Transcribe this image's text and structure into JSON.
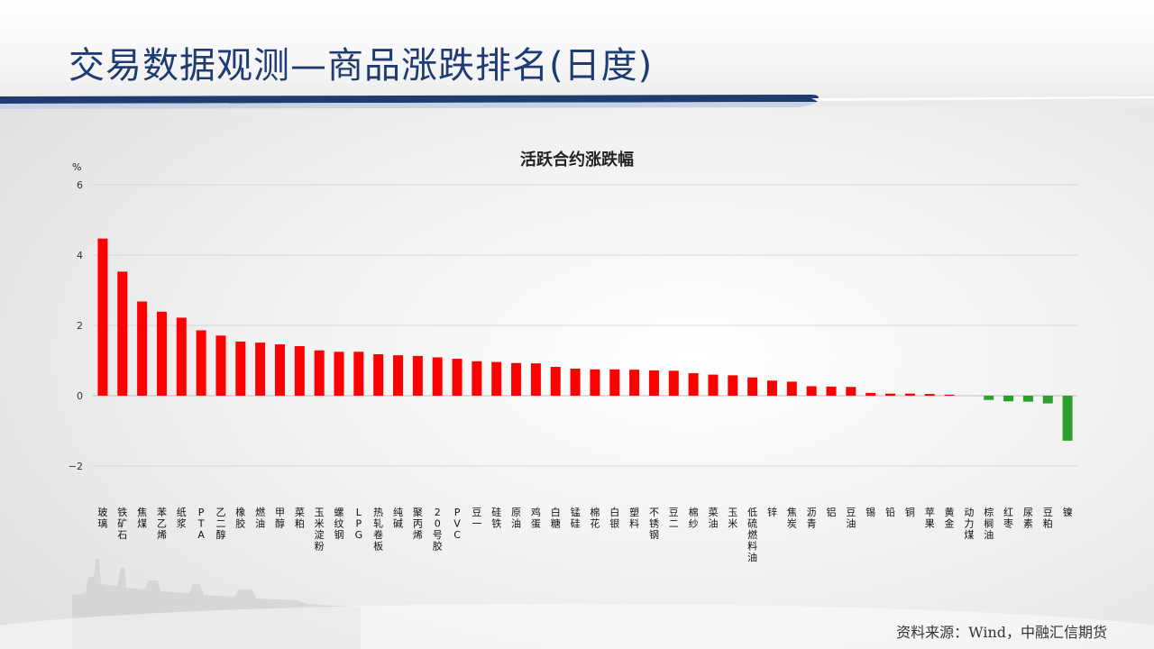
{
  "page": {
    "title": "交易数据观测—商品涨跌排名(日度)",
    "source": "资料来源：Wind，中融汇信期货"
  },
  "colors": {
    "positive": "#ff0000",
    "negative": "#2ca02c",
    "title": "#1f3c72",
    "accent": "#1f3c72"
  },
  "chart_data": {
    "type": "bar",
    "title": "活跃合约涨跌幅",
    "ylabel": "%",
    "xlabel": "",
    "ylim": [
      -2,
      6
    ],
    "yticks": [
      -2,
      0,
      2,
      4,
      6
    ],
    "grid": true,
    "legend": "none",
    "categories": [
      "玻璃",
      "铁矿石",
      "焦煤",
      "苯乙烯",
      "纸浆",
      "PTA",
      "乙二醇",
      "橡胶",
      "燃油",
      "甲醇",
      "菜粕",
      "玉米淀粉",
      "螺纹钢",
      "LPG",
      "热轧卷板",
      "纯碱",
      "聚丙烯",
      "20号胶",
      "PVC",
      "豆一",
      "硅铁",
      "原油",
      "鸡蛋",
      "白糖",
      "锰硅",
      "棉花",
      "白银",
      "塑料",
      "不锈钢",
      "豆二",
      "棉纱",
      "菜油",
      "玉米",
      "低硫燃料油",
      "锌",
      "焦炭",
      "沥青",
      "铝",
      "豆油",
      "锡",
      "铅",
      "铜",
      "苹果",
      "黄金",
      "动力煤",
      "棕榈油",
      "红枣",
      "尿素",
      "豆粕",
      "镍"
    ],
    "values": [
      4.47,
      3.53,
      2.68,
      2.39,
      2.22,
      1.86,
      1.71,
      1.54,
      1.51,
      1.46,
      1.41,
      1.29,
      1.25,
      1.25,
      1.18,
      1.15,
      1.13,
      1.09,
      1.05,
      0.98,
      0.96,
      0.93,
      0.92,
      0.82,
      0.77,
      0.75,
      0.75,
      0.74,
      0.72,
      0.71,
      0.64,
      0.6,
      0.58,
      0.52,
      0.43,
      0.4,
      0.27,
      0.26,
      0.25,
      0.08,
      0.06,
      0.06,
      0.05,
      0.03,
      0.0,
      -0.12,
      -0.16,
      -0.17,
      -0.22,
      -1.28
    ]
  }
}
